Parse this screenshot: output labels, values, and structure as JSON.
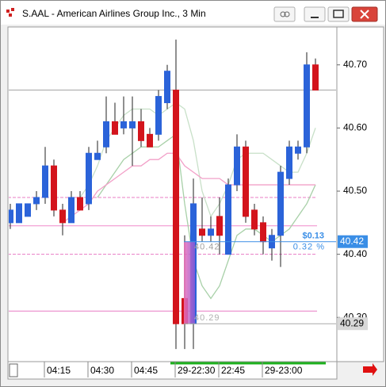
{
  "window": {
    "title": "S.AAL - American Airlines Group Inc., 3 Min"
  },
  "chart_data": {
    "type": "candlestick",
    "categories": [
      null,
      null,
      null,
      null,
      "04:15",
      null,
      null,
      null,
      null,
      "04:30",
      null,
      null,
      null,
      null,
      "04:45",
      null,
      null,
      null,
      null,
      "29-22:30",
      null,
      null,
      null,
      null,
      "22:45",
      null,
      null,
      null,
      null,
      "29-23:00",
      null,
      null,
      null,
      null,
      null,
      null
    ],
    "open": [
      40.45,
      40.45,
      40.46,
      40.48,
      40.49,
      40.54,
      40.47,
      40.45,
      40.49,
      40.48,
      40.55,
      40.57,
      40.61,
      40.6,
      40.6,
      40.61,
      40.59,
      40.59,
      40.64,
      40.66,
      40.33,
      40.29,
      40.44,
      40.43,
      40.46,
      40.4,
      40.51,
      40.57,
      40.47,
      40.45,
      40.41,
      40.43,
      40.52,
      40.56,
      40.57,
      40.7
    ],
    "high": [
      40.48,
      40.48,
      40.48,
      40.5,
      40.57,
      40.55,
      40.48,
      40.5,
      40.5,
      40.57,
      40.58,
      40.65,
      40.64,
      40.65,
      40.65,
      40.63,
      40.6,
      40.66,
      40.7,
      40.74,
      40.43,
      40.52,
      40.49,
      40.46,
      40.49,
      40.52,
      40.59,
      40.58,
      40.48,
      40.46,
      40.44,
      40.54,
      40.58,
      40.58,
      40.72,
      40.71
    ],
    "low": [
      40.44,
      40.45,
      40.46,
      40.47,
      40.48,
      40.46,
      40.43,
      40.45,
      40.47,
      40.47,
      40.55,
      40.56,
      40.59,
      40.59,
      40.54,
      40.57,
      40.57,
      40.58,
      40.63,
      40.25,
      40.25,
      40.25,
      40.42,
      40.42,
      40.4,
      40.4,
      40.5,
      40.45,
      40.43,
      40.4,
      40.39,
      40.38,
      40.51,
      40.55,
      40.56,
      40.66
    ],
    "close": [
      40.47,
      40.48,
      40.48,
      40.49,
      40.54,
      40.47,
      40.45,
      40.49,
      40.47,
      40.56,
      40.56,
      40.61,
      40.59,
      40.61,
      40.61,
      40.58,
      40.57,
      40.65,
      40.69,
      40.29,
      40.29,
      40.48,
      40.43,
      40.44,
      40.43,
      40.51,
      40.57,
      40.46,
      40.44,
      40.42,
      40.43,
      40.53,
      40.57,
      40.57,
      40.7,
      40.66
    ],
    "up_color": "#2b63d9",
    "down_color": "#d3141c",
    "overlays": [
      {
        "color": "#c8e0c8",
        "values": [
          null,
          null,
          null,
          null,
          null,
          null,
          null,
          null,
          40.49,
          40.51,
          40.54,
          40.58,
          40.6,
          40.62,
          40.63,
          40.63,
          40.63,
          40.62,
          40.63,
          40.64,
          40.63,
          40.58,
          40.5,
          40.46,
          40.48,
          40.51,
          40.55,
          40.56,
          40.56,
          40.56,
          40.55,
          40.54,
          40.53,
          40.53,
          40.56,
          40.6
        ]
      },
      {
        "color": "#a8d0a8",
        "values": [
          null,
          null,
          null,
          null,
          null,
          null,
          null,
          null,
          null,
          null,
          40.49,
          40.51,
          40.53,
          40.55,
          40.56,
          40.57,
          40.57,
          40.57,
          40.58,
          40.59,
          40.48,
          40.39,
          40.35,
          40.33,
          40.35,
          40.39,
          40.43,
          40.44,
          40.44,
          40.43,
          40.42,
          40.43,
          40.44,
          40.46,
          40.48,
          40.51
        ]
      },
      {
        "color": "#f2a0c8",
        "values": [
          null,
          null,
          null,
          null,
          null,
          null,
          40.45,
          40.46,
          40.47,
          40.48,
          40.5,
          40.51,
          40.52,
          40.53,
          40.54,
          40.54,
          40.55,
          40.55,
          40.56,
          40.56,
          40.54,
          40.53,
          40.52,
          40.52,
          40.52,
          40.51,
          40.51,
          40.51,
          40.51,
          40.51,
          40.51,
          40.51,
          40.51,
          40.51,
          40.51,
          40.51
        ]
      }
    ],
    "levels": [
      {
        "value": 40.66,
        "color": "#a0a0a0",
        "dashed": false
      },
      {
        "value": 40.49,
        "color": "#e87cc4",
        "dashed": true
      },
      {
        "value": 40.445,
        "color": "#f08ccc",
        "dashed": false
      },
      {
        "value": 40.4,
        "color": "#e87cc4",
        "dashed": true
      },
      {
        "value": 40.31,
        "color": "#e87cc4",
        "dashed": false
      }
    ],
    "measure": {
      "high": 40.42,
      "low": 40.29,
      "change": "$0.13",
      "percent": "0.32 %",
      "color": "#3a8ee6"
    },
    "ylim": [
      40.23,
      40.76
    ],
    "yticks": [
      {
        "value": 40.7,
        "label": "40.70"
      },
      {
        "value": 40.6,
        "label": "40.60"
      },
      {
        "value": 40.5,
        "label": "40.50"
      },
      {
        "value": 40.4,
        "label": "40.40"
      },
      {
        "value": 40.3,
        "label": "40.30"
      }
    ]
  }
}
